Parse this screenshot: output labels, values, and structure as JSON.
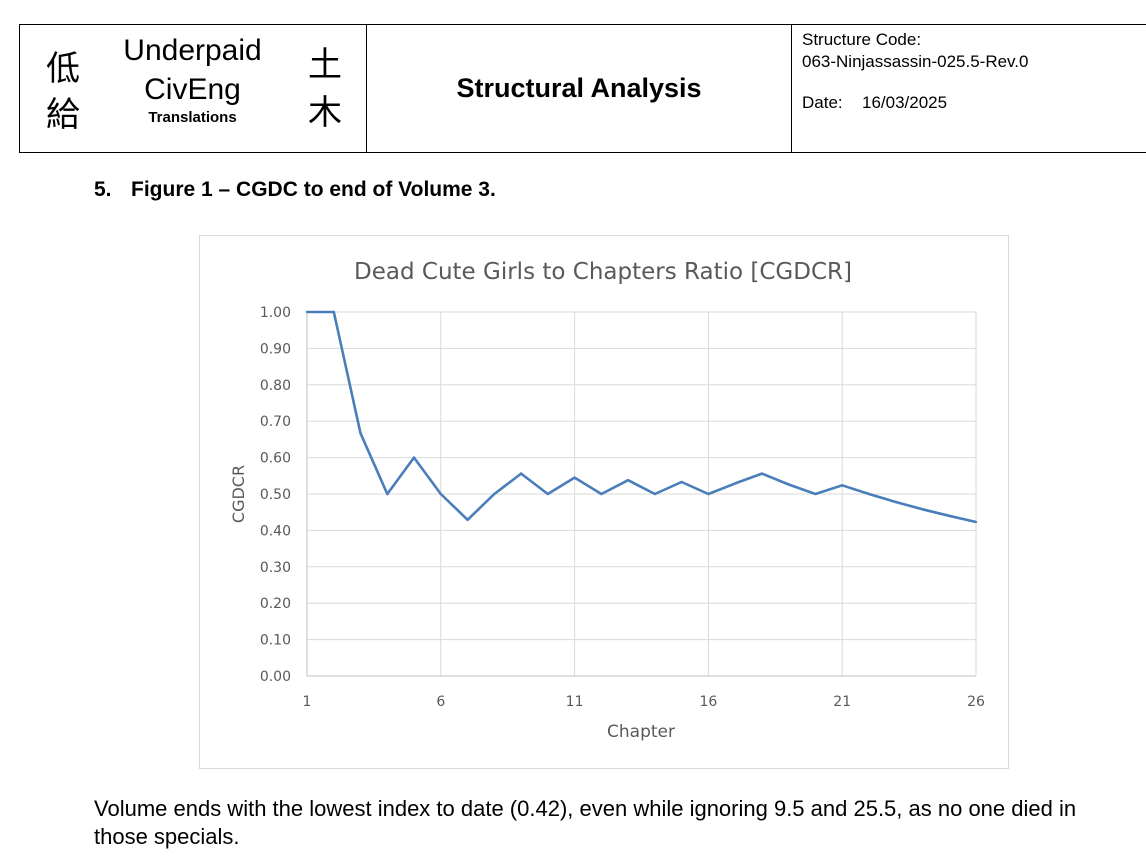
{
  "header": {
    "logo": {
      "kanji_left_top": "低",
      "kanji_left_bottom": "給",
      "kanji_right_top": "土",
      "kanji_right_bottom": "木",
      "line1": "Underpaid",
      "line2": "CivEng",
      "line3": "Translations"
    },
    "document_title": "Structural Analysis",
    "structure_code_label": "Structure Code:",
    "structure_code_value": "063-Ninjassassin-025.5-Rev.0",
    "date_label": "Date:",
    "date_value": "16/03/2025"
  },
  "section": {
    "number": "5.",
    "title": "Figure 1 – CGDC to end of Volume 3."
  },
  "chart_data": {
    "type": "line",
    "title": "Dead Cute Girls to Chapters Ratio [CGDCR]",
    "xlabel": "Chapter",
    "ylabel": "CGDCR",
    "xlim": [
      1,
      26
    ],
    "ylim": [
      0,
      1
    ],
    "xticks": [
      1,
      6,
      11,
      16,
      21,
      26
    ],
    "yticks": [
      0,
      0.1,
      0.2,
      0.3,
      0.4,
      0.5,
      0.6,
      0.7,
      0.8,
      0.9,
      1.0
    ],
    "ytick_labels": [
      "0.00",
      "0.10",
      "0.20",
      "0.30",
      "0.40",
      "0.50",
      "0.60",
      "0.70",
      "0.80",
      "0.90",
      "1.00"
    ],
    "grid": true,
    "line_color": "#4a7ebb",
    "series": [
      {
        "name": "CGDCR",
        "x": [
          1,
          2,
          3,
          4,
          5,
          6,
          7,
          8,
          9,
          10,
          11,
          12,
          13,
          14,
          15,
          16,
          17,
          18,
          19,
          20,
          21,
          22,
          23,
          24,
          25,
          26
        ],
        "values": [
          1.0,
          1.0,
          0.667,
          0.5,
          0.6,
          0.5,
          0.429,
          0.5,
          0.556,
          0.5,
          0.545,
          0.5,
          0.538,
          0.5,
          0.533,
          0.5,
          0.529,
          0.556,
          0.526,
          0.5,
          0.524,
          0.5,
          0.478,
          0.458,
          0.44,
          0.423
        ]
      }
    ]
  },
  "note": "Volume ends with the lowest index to date (0.42), even while ignoring 9.5 and 25.5, as no one died in those specials."
}
